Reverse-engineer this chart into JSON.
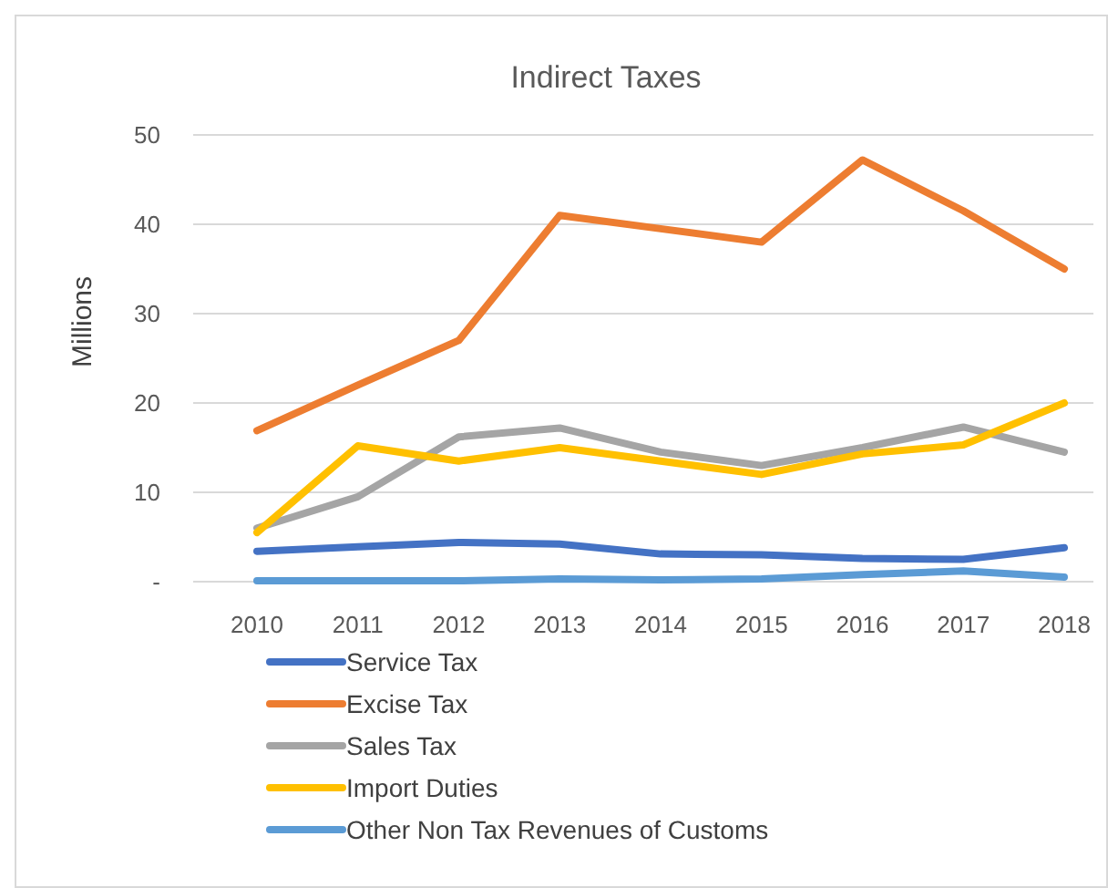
{
  "chart_data": {
    "type": "line",
    "title": "Indirect Taxes",
    "ylabel": "Millions",
    "categories": [
      "2010",
      "2011",
      "2012",
      "2013",
      "2014",
      "2015",
      "2016",
      "2017",
      "2018"
    ],
    "ylim": [
      0,
      50
    ],
    "yticks": [
      {
        "value": 0,
        "label": "-"
      },
      10,
      20,
      30,
      40,
      50
    ],
    "grid": "y",
    "legend": "bottom",
    "marker": "none",
    "line_style": "solid",
    "series": [
      {
        "name": "Service Tax",
        "color": "#4472c4",
        "values": [
          3.4,
          3.9,
          4.4,
          4.2,
          3.1,
          3.0,
          2.6,
          2.5,
          3.8
        ]
      },
      {
        "name": "Excise Tax",
        "color": "#ed7d31",
        "values": [
          16.9,
          22,
          27,
          41,
          39.5,
          38,
          47.2,
          41.5,
          35
        ]
      },
      {
        "name": "Sales Tax",
        "color": "#a5a5a5",
        "values": [
          6,
          9.5,
          16.2,
          17.2,
          14.5,
          13,
          15,
          17.3,
          14.5
        ]
      },
      {
        "name": "Import Duties",
        "color": "#ffc000",
        "values": [
          5.5,
          15.2,
          13.5,
          15,
          13.5,
          12,
          14.3,
          15.3,
          20
        ]
      },
      {
        "name": "Other Non Tax Revenues of Customs",
        "color": "#5b9bd5",
        "values": [
          0.1,
          0.1,
          0.1,
          0.3,
          0.2,
          0.3,
          0.8,
          1.2,
          0.5
        ]
      }
    ]
  }
}
